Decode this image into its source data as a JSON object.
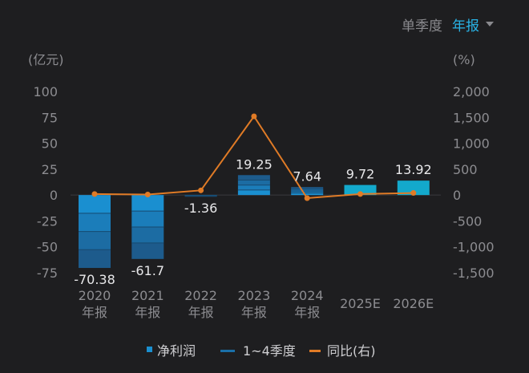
{
  "toggle": {
    "options": [
      {
        "label": "单季度",
        "active": false
      },
      {
        "label": "年报",
        "active": true
      }
    ]
  },
  "chart_data": {
    "type": "bar",
    "categories": [
      [
        "2020",
        "年报"
      ],
      [
        "2021",
        "年报"
      ],
      [
        "2022",
        "年报"
      ],
      [
        "2023",
        "年报"
      ],
      [
        "2024",
        "年报"
      ],
      [
        "2025E"
      ],
      [
        "2026E"
      ]
    ],
    "left_axis": {
      "unit": "(亿元)",
      "min": -75,
      "max": 100,
      "ticks": [
        "100",
        "75",
        "50",
        "25",
        "0",
        "-25",
        "-50",
        "-75"
      ],
      "tick_values": [
        100,
        75,
        50,
        25,
        0,
        -25,
        -50,
        -75
      ]
    },
    "right_axis": {
      "unit": "(%)",
      "min": -1500,
      "max": 2000,
      "ticks": [
        "2,000",
        "1,500",
        "1,000",
        "500",
        "0",
        "-500",
        "-1,000",
        "-1,500"
      ],
      "tick_values": [
        2000,
        1500,
        1000,
        500,
        0,
        -500,
        -1000,
        -1500
      ]
    },
    "series": [
      {
        "name": "净利润",
        "type": "bar",
        "color": "#1a8fd0",
        "values": [
          -70.38,
          -61.7,
          -1.36,
          19.25,
          7.64,
          9.72,
          13.92
        ],
        "labels": [
          "-70.38",
          "-61.7",
          "-1.36",
          "19.25",
          "7.64",
          "9.72",
          "13.92"
        ],
        "quarterly_stack": [
          true,
          true,
          true,
          true,
          true,
          false,
          false
        ],
        "forecast_color": "#13a9cc"
      },
      {
        "name": "1~4季度",
        "type": "stack-legend",
        "color": "#1a6fa8"
      },
      {
        "name": "同比(右)",
        "type": "line",
        "color": "#e07b26",
        "values": [
          20,
          10,
          90,
          1520,
          -60,
          20,
          40
        ]
      }
    ],
    "legend_position": "bottom"
  }
}
